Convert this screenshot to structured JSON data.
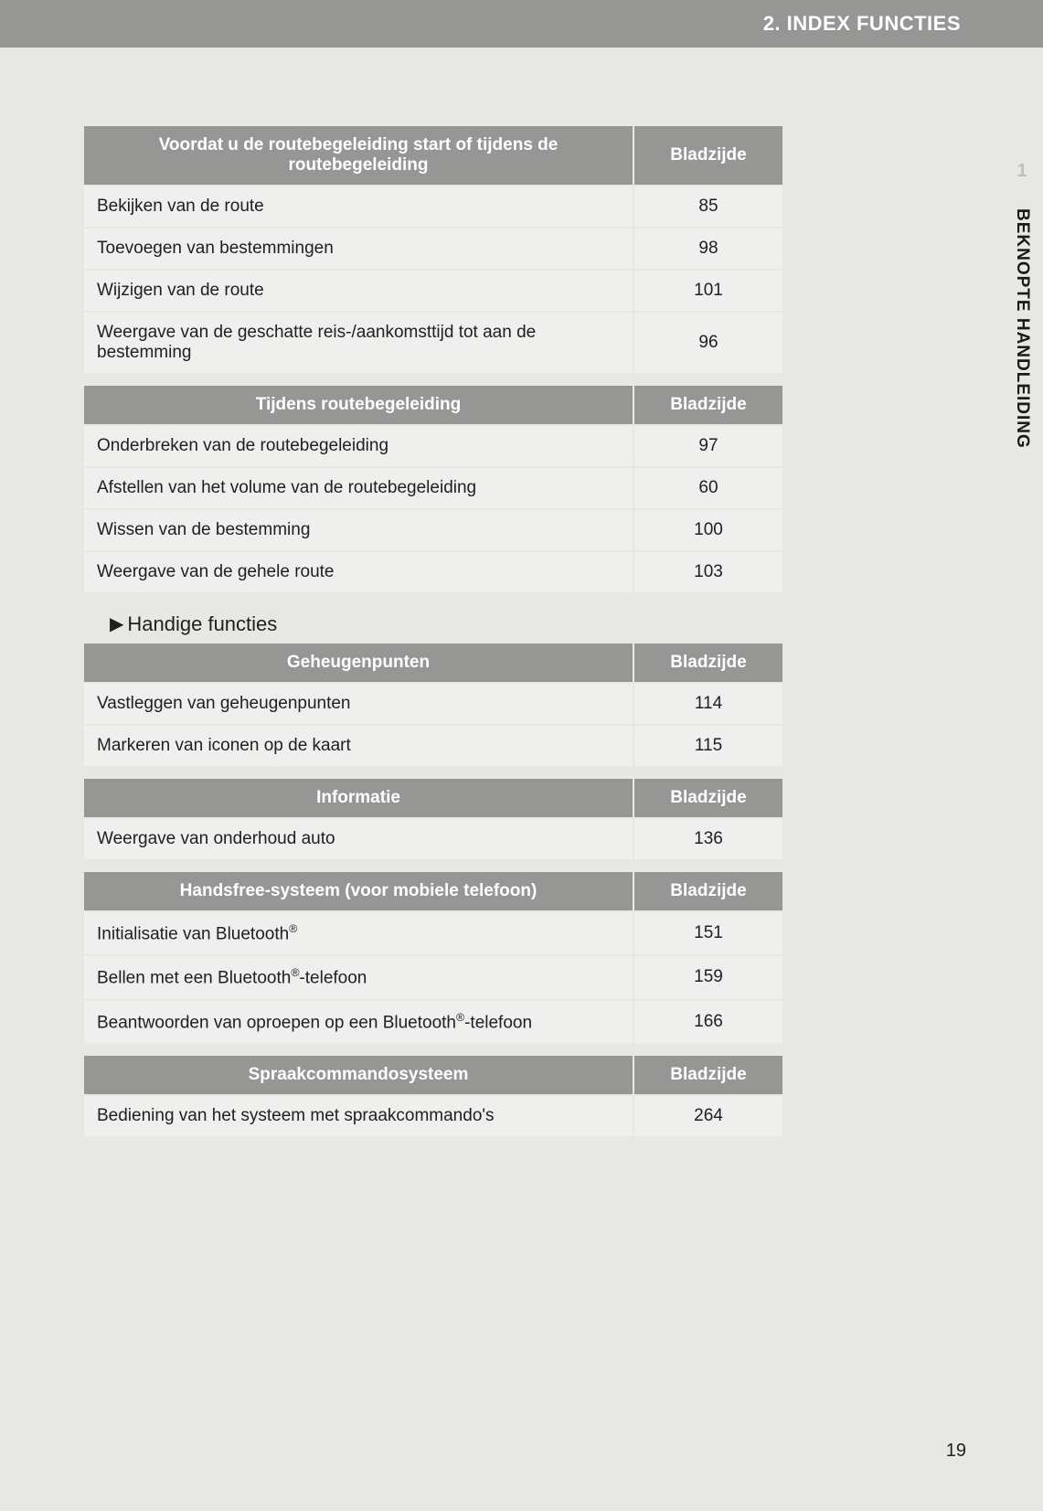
{
  "header": {
    "title": "2. INDEX FUNCTIES"
  },
  "side_tab": {
    "chapter_number": "1",
    "label": "BEKNOPTE HANDLEIDING"
  },
  "page_label_column": "Bladzijde",
  "section_heading": "Handige functies",
  "page_number": "19",
  "colors": {
    "page_bg": "#e7e7e4",
    "header_bg": "#969694",
    "header_text": "#ffffff",
    "row_bg": "#efefed",
    "row_border": "#e7e7e4",
    "body_text": "#202020",
    "side_num_color": "#bfbfbd"
  },
  "tables": [
    {
      "title": "Voordat u de routebegeleiding start of tijdens de routebegeleiding",
      "rows": [
        {
          "label": "Bekijken van de route",
          "page": "85"
        },
        {
          "label": "Toevoegen van bestemmingen",
          "page": "98"
        },
        {
          "label": "Wijzigen van de route",
          "page": "101"
        },
        {
          "label": "Weergave van de geschatte reis-/aankomsttijd tot aan de bestemming",
          "page": "96"
        }
      ]
    },
    {
      "title": "Tijdens routebegeleiding",
      "rows": [
        {
          "label": "Onderbreken van de routebegeleiding",
          "page": "97"
        },
        {
          "label": "Afstellen van het volume van de routebegeleiding",
          "page": "60"
        },
        {
          "label": "Wissen van de bestemming",
          "page": "100"
        },
        {
          "label": "Weergave van de gehele route",
          "page": "103"
        }
      ]
    },
    {
      "title": "Geheugenpunten",
      "rows": [
        {
          "label": "Vastleggen van geheugenpunten",
          "page": "114"
        },
        {
          "label": "Markeren van iconen op de kaart",
          "page": "115"
        }
      ]
    },
    {
      "title": "Informatie",
      "rows": [
        {
          "label": "Weergave van onderhoud auto",
          "page": "136"
        }
      ]
    },
    {
      "title": "Handsfree-systeem (voor mobiele telefoon)",
      "rows": [
        {
          "label_html": "Initialisatie van Bluetooth<sup class='reg'>®</sup>",
          "page": "151"
        },
        {
          "label_html": "Bellen met een Bluetooth<sup class='reg'>®</sup>-telefoon",
          "page": "159"
        },
        {
          "label_html": "Beantwoorden van oproepen op een Bluetooth<sup class='reg'>®</sup>-telefoon",
          "page": "166"
        }
      ]
    },
    {
      "title": "Spraakcommandosysteem",
      "rows": [
        {
          "label": "Bediening van het systeem met spraakcommando's",
          "page": "264"
        }
      ]
    }
  ]
}
